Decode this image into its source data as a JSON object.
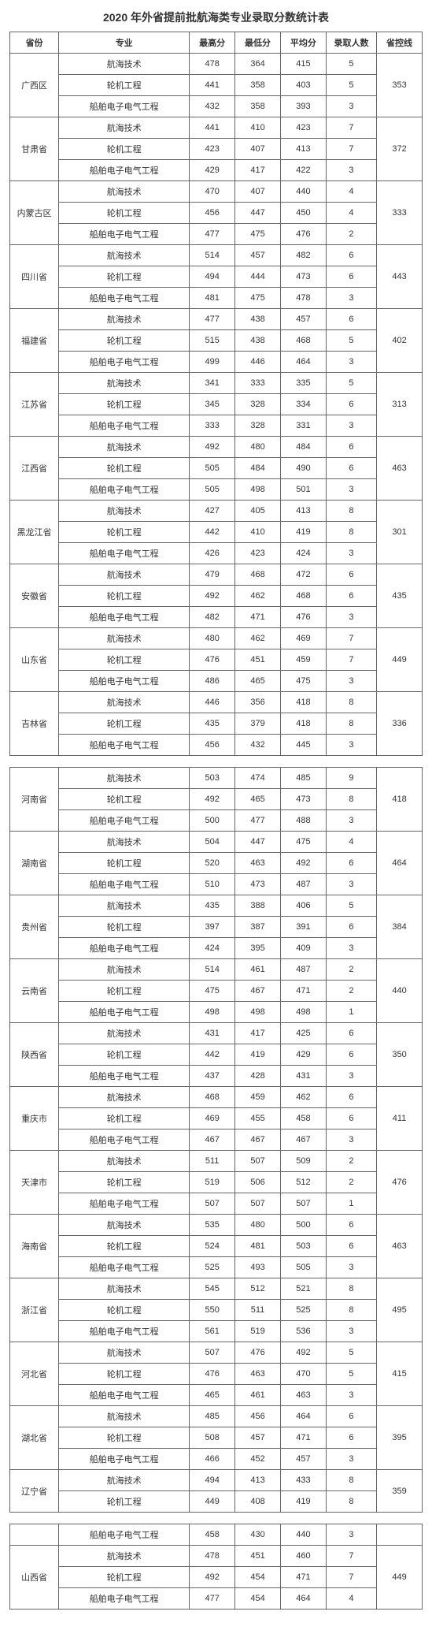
{
  "title": "2020 年外省提前批航海类专业录取分数统计表",
  "headers": {
    "province": "省份",
    "major": "专业",
    "max": "最高分",
    "min": "最低分",
    "avg": "平均分",
    "admitted": "录取人数",
    "ctrl": "省控线"
  },
  "block1": [
    {
      "province": "广西区",
      "ctrl": "353",
      "rows": [
        {
          "major": "航海技术",
          "max": "478",
          "min": "364",
          "avg": "415",
          "admitted": "5"
        },
        {
          "major": "轮机工程",
          "max": "441",
          "min": "358",
          "avg": "403",
          "admitted": "5"
        },
        {
          "major": "船舶电子电气工程",
          "max": "432",
          "min": "358",
          "avg": "393",
          "admitted": "3"
        }
      ]
    },
    {
      "province": "甘肃省",
      "ctrl": "372",
      "rows": [
        {
          "major": "航海技术",
          "max": "441",
          "min": "410",
          "avg": "423",
          "admitted": "7"
        },
        {
          "major": "轮机工程",
          "max": "423",
          "min": "407",
          "avg": "413",
          "admitted": "7"
        },
        {
          "major": "船舶电子电气工程",
          "max": "429",
          "min": "417",
          "avg": "422",
          "admitted": "3"
        }
      ]
    },
    {
      "province": "内蒙古区",
      "ctrl": "333",
      "rows": [
        {
          "major": "航海技术",
          "max": "470",
          "min": "407",
          "avg": "440",
          "admitted": "4"
        },
        {
          "major": "轮机工程",
          "max": "456",
          "min": "447",
          "avg": "450",
          "admitted": "4"
        },
        {
          "major": "船舶电子电气工程",
          "max": "477",
          "min": "475",
          "avg": "476",
          "admitted": "2"
        }
      ]
    },
    {
      "province": "四川省",
      "ctrl": "443",
      "rows": [
        {
          "major": "航海技术",
          "max": "514",
          "min": "457",
          "avg": "482",
          "admitted": "6"
        },
        {
          "major": "轮机工程",
          "max": "494",
          "min": "444",
          "avg": "473",
          "admitted": "6"
        },
        {
          "major": "船舶电子电气工程",
          "max": "481",
          "min": "475",
          "avg": "478",
          "admitted": "3"
        }
      ]
    },
    {
      "province": "福建省",
      "ctrl": "402",
      "rows": [
        {
          "major": "航海技术",
          "max": "477",
          "min": "438",
          "avg": "457",
          "admitted": "6"
        },
        {
          "major": "轮机工程",
          "max": "515",
          "min": "438",
          "avg": "468",
          "admitted": "5"
        },
        {
          "major": "船舶电子电气工程",
          "max": "499",
          "min": "446",
          "avg": "464",
          "admitted": "3"
        }
      ]
    },
    {
      "province": "江苏省",
      "ctrl": "313",
      "rows": [
        {
          "major": "航海技术",
          "max": "341",
          "min": "333",
          "avg": "335",
          "admitted": "5"
        },
        {
          "major": "轮机工程",
          "max": "345",
          "min": "328",
          "avg": "334",
          "admitted": "6"
        },
        {
          "major": "船舶电子电气工程",
          "max": "333",
          "min": "328",
          "avg": "331",
          "admitted": "3"
        }
      ]
    },
    {
      "province": "江西省",
      "ctrl": "463",
      "rows": [
        {
          "major": "航海技术",
          "max": "492",
          "min": "480",
          "avg": "484",
          "admitted": "6"
        },
        {
          "major": "轮机工程",
          "max": "505",
          "min": "484",
          "avg": "490",
          "admitted": "6"
        },
        {
          "major": "船舶电子电气工程",
          "max": "505",
          "min": "498",
          "avg": "501",
          "admitted": "3"
        }
      ]
    },
    {
      "province": "黑龙江省",
      "ctrl": "301",
      "rows": [
        {
          "major": "航海技术",
          "max": "427",
          "min": "405",
          "avg": "413",
          "admitted": "8"
        },
        {
          "major": "轮机工程",
          "max": "442",
          "min": "410",
          "avg": "419",
          "admitted": "8"
        },
        {
          "major": "船舶电子电气工程",
          "max": "426",
          "min": "423",
          "avg": "424",
          "admitted": "3"
        }
      ]
    },
    {
      "province": "安徽省",
      "ctrl": "435",
      "rows": [
        {
          "major": "航海技术",
          "max": "479",
          "min": "468",
          "avg": "472",
          "admitted": "6"
        },
        {
          "major": "轮机工程",
          "max": "492",
          "min": "462",
          "avg": "468",
          "admitted": "6"
        },
        {
          "major": "船舶电子电气工程",
          "max": "482",
          "min": "471",
          "avg": "476",
          "admitted": "3"
        }
      ]
    },
    {
      "province": "山东省",
      "ctrl": "449",
      "rows": [
        {
          "major": "航海技术",
          "max": "480",
          "min": "462",
          "avg": "469",
          "admitted": "7"
        },
        {
          "major": "轮机工程",
          "max": "476",
          "min": "451",
          "avg": "459",
          "admitted": "7"
        },
        {
          "major": "船舶电子电气工程",
          "max": "486",
          "min": "465",
          "avg": "475",
          "admitted": "3"
        }
      ]
    },
    {
      "province": "吉林省",
      "ctrl": "336",
      "rows": [
        {
          "major": "航海技术",
          "max": "446",
          "min": "356",
          "avg": "418",
          "admitted": "8"
        },
        {
          "major": "轮机工程",
          "max": "435",
          "min": "379",
          "avg": "418",
          "admitted": "8"
        },
        {
          "major": "船舶电子电气工程",
          "max": "456",
          "min": "432",
          "avg": "445",
          "admitted": "3"
        }
      ]
    }
  ],
  "block2": [
    {
      "province": "河南省",
      "ctrl": "418",
      "rows": [
        {
          "major": "航海技术",
          "max": "503",
          "min": "474",
          "avg": "485",
          "admitted": "9"
        },
        {
          "major": "轮机工程",
          "max": "492",
          "min": "465",
          "avg": "473",
          "admitted": "8"
        },
        {
          "major": "船舶电子电气工程",
          "max": "500",
          "min": "477",
          "avg": "488",
          "admitted": "3"
        }
      ]
    },
    {
      "province": "湖南省",
      "ctrl": "464",
      "rows": [
        {
          "major": "航海技术",
          "max": "504",
          "min": "447",
          "avg": "475",
          "admitted": "4"
        },
        {
          "major": "轮机工程",
          "max": "520",
          "min": "463",
          "avg": "492",
          "admitted": "6"
        },
        {
          "major": "船舶电子电气工程",
          "max": "510",
          "min": "473",
          "avg": "487",
          "admitted": "3"
        }
      ]
    },
    {
      "province": "贵州省",
      "ctrl": "384",
      "rows": [
        {
          "major": "航海技术",
          "max": "435",
          "min": "388",
          "avg": "406",
          "admitted": "5"
        },
        {
          "major": "轮机工程",
          "max": "397",
          "min": "387",
          "avg": "391",
          "admitted": "6"
        },
        {
          "major": "船舶电子电气工程",
          "max": "424",
          "min": "395",
          "avg": "409",
          "admitted": "3"
        }
      ]
    },
    {
      "province": "云南省",
      "ctrl": "440",
      "rows": [
        {
          "major": "航海技术",
          "max": "514",
          "min": "461",
          "avg": "487",
          "admitted": "2"
        },
        {
          "major": "轮机工程",
          "max": "475",
          "min": "467",
          "avg": "471",
          "admitted": "2"
        },
        {
          "major": "船舶电子电气工程",
          "max": "498",
          "min": "498",
          "avg": "498",
          "admitted": "1"
        }
      ]
    },
    {
      "province": "陕西省",
      "ctrl": "350",
      "rows": [
        {
          "major": "航海技术",
          "max": "431",
          "min": "417",
          "avg": "425",
          "admitted": "6"
        },
        {
          "major": "轮机工程",
          "max": "442",
          "min": "419",
          "avg": "429",
          "admitted": "6"
        },
        {
          "major": "船舶电子电气工程",
          "max": "437",
          "min": "428",
          "avg": "431",
          "admitted": "3"
        }
      ]
    },
    {
      "province": "重庆市",
      "ctrl": "411",
      "rows": [
        {
          "major": "航海技术",
          "max": "468",
          "min": "459",
          "avg": "462",
          "admitted": "6"
        },
        {
          "major": "轮机工程",
          "max": "469",
          "min": "455",
          "avg": "458",
          "admitted": "6"
        },
        {
          "major": "船舶电子电气工程",
          "max": "467",
          "min": "467",
          "avg": "467",
          "admitted": "3"
        }
      ]
    },
    {
      "province": "天津市",
      "ctrl": "476",
      "rows": [
        {
          "major": "航海技术",
          "max": "511",
          "min": "507",
          "avg": "509",
          "admitted": "2"
        },
        {
          "major": "轮机工程",
          "max": "519",
          "min": "506",
          "avg": "512",
          "admitted": "2"
        },
        {
          "major": "船舶电子电气工程",
          "max": "507",
          "min": "507",
          "avg": "507",
          "admitted": "1"
        }
      ]
    },
    {
      "province": "海南省",
      "ctrl": "463",
      "rows": [
        {
          "major": "航海技术",
          "max": "535",
          "min": "480",
          "avg": "500",
          "admitted": "6"
        },
        {
          "major": "轮机工程",
          "max": "524",
          "min": "481",
          "avg": "503",
          "admitted": "6"
        },
        {
          "major": "船舶电子电气工程",
          "max": "525",
          "min": "493",
          "avg": "505",
          "admitted": "3"
        }
      ]
    },
    {
      "province": "浙江省",
      "ctrl": "495",
      "rows": [
        {
          "major": "航海技术",
          "max": "545",
          "min": "512",
          "avg": "521",
          "admitted": "8"
        },
        {
          "major": "轮机工程",
          "max": "550",
          "min": "511",
          "avg": "525",
          "admitted": "8"
        },
        {
          "major": "船舶电子电气工程",
          "max": "561",
          "min": "519",
          "avg": "536",
          "admitted": "3"
        }
      ]
    },
    {
      "province": "河北省",
      "ctrl": "415",
      "rows": [
        {
          "major": "航海技术",
          "max": "507",
          "min": "476",
          "avg": "492",
          "admitted": "5"
        },
        {
          "major": "轮机工程",
          "max": "476",
          "min": "463",
          "avg": "470",
          "admitted": "5"
        },
        {
          "major": "船舶电子电气工程",
          "max": "465",
          "min": "461",
          "avg": "463",
          "admitted": "3"
        }
      ]
    },
    {
      "province": "湖北省",
      "ctrl": "395",
      "rows": [
        {
          "major": "航海技术",
          "max": "485",
          "min": "456",
          "avg": "464",
          "admitted": "6"
        },
        {
          "major": "轮机工程",
          "max": "508",
          "min": "457",
          "avg": "471",
          "admitted": "6"
        },
        {
          "major": "船舶电子电气工程",
          "max": "466",
          "min": "452",
          "avg": "457",
          "admitted": "3"
        }
      ]
    },
    {
      "province": "辽宁省",
      "ctrl": "359",
      "partialRows": 2,
      "rows": [
        {
          "major": "航海技术",
          "max": "494",
          "min": "413",
          "avg": "433",
          "admitted": "8"
        },
        {
          "major": "轮机工程",
          "max": "449",
          "min": "408",
          "avg": "419",
          "admitted": "8"
        }
      ]
    }
  ],
  "block3": {
    "orphanRow": {
      "major": "船舶电子电气工程",
      "max": "458",
      "min": "430",
      "avg": "440",
      "admitted": "3"
    },
    "group": {
      "province": "山西省",
      "ctrl": "449",
      "rows": [
        {
          "major": "航海技术",
          "max": "478",
          "min": "451",
          "avg": "460",
          "admitted": "7"
        },
        {
          "major": "轮机工程",
          "max": "492",
          "min": "454",
          "avg": "471",
          "admitted": "7"
        },
        {
          "major": "船舶电子电气工程",
          "max": "477",
          "min": "454",
          "avg": "464",
          "admitted": "4"
        }
      ]
    }
  }
}
